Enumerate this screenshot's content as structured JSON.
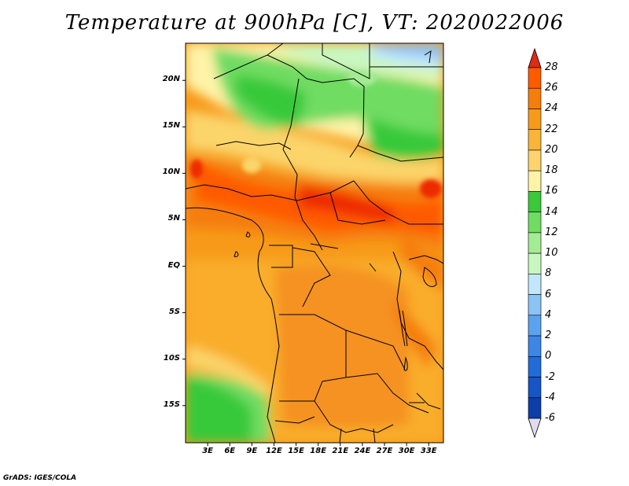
{
  "title": "Temperature at 900hPa [C], VT: 2020022006",
  "credit": "GrADS: IGES/COLA",
  "map": {
    "variable": "Temperature",
    "level": "900hPa",
    "units": "C",
    "valid_time": "2020022006",
    "lat_range": [
      -19,
      24
    ],
    "lon_range": [
      0,
      35
    ],
    "lat_ticks": [
      {
        "value": 20,
        "label": "20N"
      },
      {
        "value": 15,
        "label": "15N"
      },
      {
        "value": 10,
        "label": "10N"
      },
      {
        "value": 5,
        "label": "5N"
      },
      {
        "value": 0,
        "label": "EQ"
      },
      {
        "value": -5,
        "label": "5S"
      },
      {
        "value": -10,
        "label": "10S"
      },
      {
        "value": -15,
        "label": "15S"
      }
    ],
    "lon_ticks": [
      {
        "value": 3,
        "label": "3E"
      },
      {
        "value": 6,
        "label": "6E"
      },
      {
        "value": 9,
        "label": "9E"
      },
      {
        "value": 12,
        "label": "12E"
      },
      {
        "value": 15,
        "label": "15E"
      },
      {
        "value": 18,
        "label": "18E"
      },
      {
        "value": 21,
        "label": "21E"
      },
      {
        "value": 24,
        "label": "24E"
      },
      {
        "value": 27,
        "label": "27E"
      },
      {
        "value": 30,
        "label": "30E"
      },
      {
        "value": 33,
        "label": "33E"
      }
    ]
  },
  "colorbar": {
    "levels": [
      "28",
      "26",
      "24",
      "22",
      "20",
      "18",
      "16",
      "14",
      "12",
      "10",
      "8",
      "6",
      "4",
      "2",
      "0",
      "-2",
      "-4",
      "-6"
    ],
    "colors": [
      "#ee2c00",
      "#ff5a00",
      "#f57e0a",
      "#f79a1a",
      "#f9b43a",
      "#fbd46b",
      "#fff3a8",
      "#39c93a",
      "#6fdc62",
      "#a3ec93",
      "#c9f7c0",
      "#c2e6fb",
      "#8cc3f5",
      "#5ba3ef",
      "#3d86e6",
      "#226bd8",
      "#1555c6",
      "#0b3ea8",
      "#0a1a6e"
    ],
    "top_color": "#e02a14",
    "bottom_color": "#e0dcf0"
  }
}
